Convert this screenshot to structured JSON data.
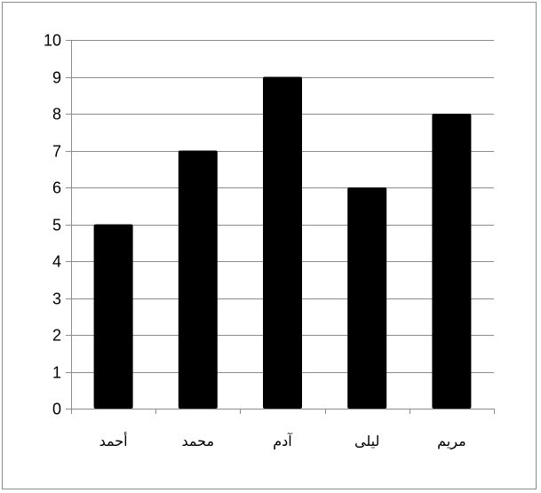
{
  "chart_data": {
    "type": "bar",
    "categories": [
      "أحمد",
      "محمد",
      "آدم",
      "ليلى",
      "مريم"
    ],
    "values": [
      5,
      7,
      9,
      6,
      8
    ],
    "ylim": [
      0,
      10
    ],
    "yticks": [
      0,
      1,
      2,
      3,
      4,
      5,
      6,
      7,
      8,
      9,
      10
    ],
    "grid": true,
    "legend": "none",
    "title": "",
    "xlabel": "",
    "ylabel": ""
  },
  "colors": {
    "bar": "#000000",
    "grid": "#8c8c8c",
    "axis": "#8c8c8c",
    "frame": "#8c8c8c"
  }
}
